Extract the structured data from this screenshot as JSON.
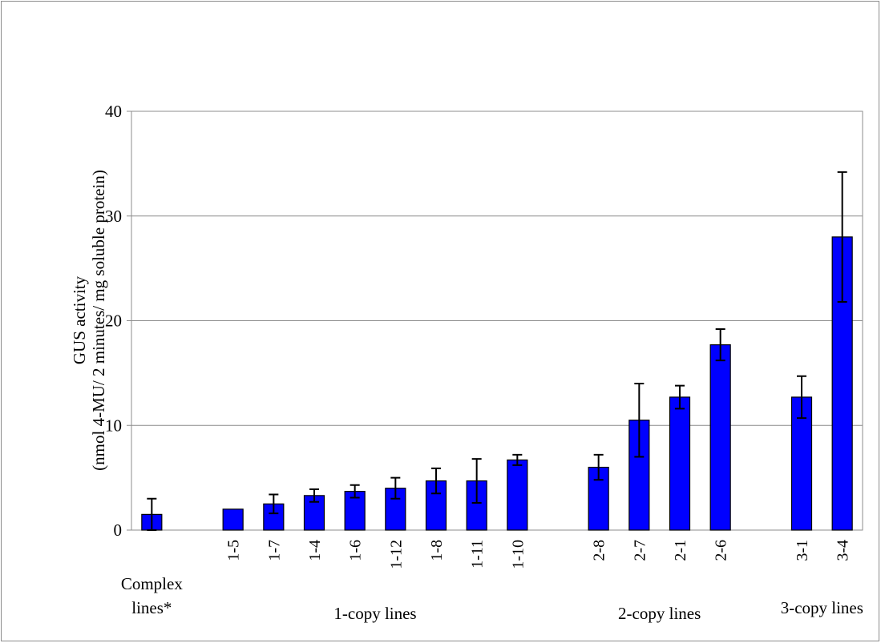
{
  "chart_data": {
    "type": "bar",
    "title": "",
    "ylabel_line1": "GUS activity",
    "ylabel_line2": "(nmol 4-MU/ 2 minutes/ mg soluble protein)",
    "xlabel": "",
    "ylim": [
      0,
      40
    ],
    "yticks": [
      "0",
      "10",
      "20",
      "30",
      "40"
    ],
    "grid": true,
    "bar_color": "#0000ff",
    "bars": [
      {
        "label": "",
        "value": 1.5,
        "err": 1.5
      },
      {
        "label": "1-5",
        "value": 2.0,
        "err": 0
      },
      {
        "label": "1-7",
        "value": 2.5,
        "err": 0.9
      },
      {
        "label": "1-4",
        "value": 3.3,
        "err": 0.6
      },
      {
        "label": "1-6",
        "value": 3.7,
        "err": 0.6
      },
      {
        "label": "1-12",
        "value": 4.0,
        "err": 1.0
      },
      {
        "label": "1-8",
        "value": 4.7,
        "err": 1.2
      },
      {
        "label": "1-11",
        "value": 4.7,
        "err": 2.1
      },
      {
        "label": "1-10",
        "value": 6.7,
        "err": 0.5
      },
      {
        "label": "2-8",
        "value": 6.0,
        "err": 1.2
      },
      {
        "label": "2-7",
        "value": 10.5,
        "err": 3.5
      },
      {
        "label": "2-1",
        "value": 12.7,
        "err": 1.1
      },
      {
        "label": "2-6",
        "value": 17.7,
        "err": 1.5
      },
      {
        "label": "3-1",
        "value": 12.7,
        "err": 2.0
      },
      {
        "label": "3-4",
        "value": 28.0,
        "err": 6.2
      }
    ],
    "groups": [
      {
        "line1": "Complex",
        "line2": "lines*"
      },
      {
        "line1": "1-copy lines",
        "line2": ""
      },
      {
        "line1": "2-copy lines",
        "line2": ""
      },
      {
        "line1": "3-copy lines",
        "line2": ""
      }
    ]
  }
}
